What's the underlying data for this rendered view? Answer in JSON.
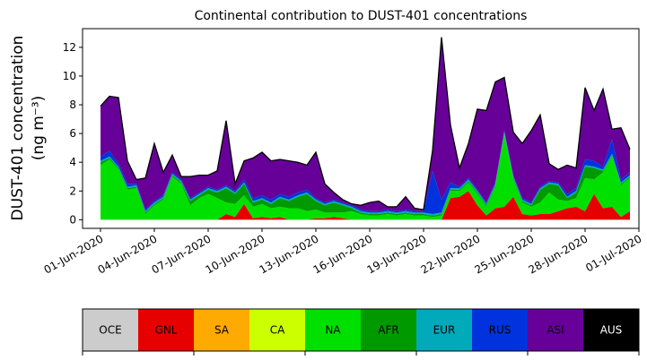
{
  "chart_data": {
    "type": "area",
    "stacked": true,
    "title": "Continental contribution to DUST-401 concentrations",
    "xlabel": "",
    "ylabel_line1": "DUST-401 concentration",
    "ylabel_line2": "(ng m⁻³)",
    "xlim": [
      "2020-05-31",
      "2020-07-01"
    ],
    "ylim": [
      -0.6,
      13.3
    ],
    "yticks": [
      0,
      2,
      4,
      6,
      8,
      10,
      12
    ],
    "xtick_labels": [
      "01-Jun-2020",
      "04-Jun-2020",
      "07-Jun-2020",
      "10-Jun-2020",
      "13-Jun-2020",
      "16-Jun-2020",
      "19-Jun-2020",
      "22-Jun-2020",
      "25-Jun-2020",
      "28-Jun-2020",
      "01-Jul-2020"
    ],
    "grid": false,
    "legend_position": "bottom",
    "x": [
      "2020-06-01",
      "2020-06-01",
      "2020-06-02",
      "2020-06-02",
      "2020-06-03",
      "2020-06-03",
      "2020-06-04",
      "2020-06-04",
      "2020-06-05",
      "2020-06-05",
      "2020-06-06",
      "2020-06-06",
      "2020-06-07",
      "2020-06-07",
      "2020-06-08",
      "2020-06-08",
      "2020-06-09",
      "2020-06-09",
      "2020-06-10",
      "2020-06-10",
      "2020-06-11",
      "2020-06-11",
      "2020-06-12",
      "2020-06-12",
      "2020-06-13",
      "2020-06-13",
      "2020-06-14",
      "2020-06-14",
      "2020-06-15",
      "2020-06-15",
      "2020-06-16",
      "2020-06-16",
      "2020-06-17",
      "2020-06-17",
      "2020-06-18",
      "2020-06-18",
      "2020-06-19",
      "2020-06-19",
      "2020-06-20",
      "2020-06-20",
      "2020-06-21",
      "2020-06-21",
      "2020-06-22",
      "2020-06-22",
      "2020-06-23",
      "2020-06-23",
      "2020-06-24",
      "2020-06-24",
      "2020-06-25",
      "2020-06-25",
      "2020-06-26",
      "2020-06-26",
      "2020-06-27",
      "2020-06-27",
      "2020-06-28",
      "2020-06-28",
      "2020-06-29",
      "2020-06-29",
      "2020-06-30",
      "2020-06-30"
    ],
    "series": [
      {
        "name": "OCE",
        "color": "#cccccc",
        "values": [
          0,
          0,
          0,
          0,
          0,
          0,
          0,
          0,
          0,
          0,
          0,
          0,
          0,
          0,
          0,
          0,
          0,
          0,
          0,
          0,
          0,
          0,
          0,
          0,
          0,
          0,
          0,
          0,
          0,
          0,
          0,
          0,
          0,
          0,
          0,
          0,
          0,
          0,
          0,
          0,
          0,
          0,
          0,
          0,
          0,
          0,
          0,
          0,
          0,
          0,
          0,
          0,
          0,
          0,
          0,
          0,
          0,
          0,
          0,
          0
        ]
      },
      {
        "name": "GNL",
        "color": "#e60000",
        "values": [
          0,
          0,
          0,
          0,
          0,
          0,
          0,
          0,
          0,
          0,
          0,
          0,
          0,
          0,
          0.4,
          0.2,
          1.1,
          0.1,
          0.2,
          0.1,
          0.2,
          0,
          0,
          0,
          0.1,
          0.1,
          0.2,
          0.1,
          0,
          0,
          0,
          0,
          0,
          0,
          0,
          0,
          0,
          0,
          0,
          1.5,
          1.6,
          2.0,
          1.0,
          0.3,
          0.8,
          0.9,
          1.6,
          0.4,
          0.3,
          0.4,
          0.4,
          0.6,
          0.8,
          0.9,
          0.6,
          1.8,
          0.8,
          0.9,
          0.2,
          0.6
        ]
      },
      {
        "name": "SA",
        "color": "#ffaa00",
        "values": [
          0,
          0,
          0,
          0,
          0,
          0,
          0,
          0,
          0,
          0,
          0,
          0,
          0,
          0,
          0,
          0,
          0,
          0,
          0,
          0,
          0,
          0,
          0,
          0,
          0,
          0,
          0,
          0,
          0,
          0,
          0,
          0,
          0,
          0,
          0,
          0,
          0,
          0,
          0,
          0,
          0,
          0,
          0,
          0,
          0,
          0,
          0,
          0,
          0,
          0,
          0,
          0,
          0,
          0,
          0,
          0,
          0,
          0,
          0,
          0
        ]
      },
      {
        "name": "CA",
        "color": "#ccff00",
        "values": [
          0,
          0,
          0,
          0,
          0,
          0,
          0,
          0,
          0,
          0,
          0,
          0,
          0,
          0,
          0,
          0,
          0,
          0,
          0,
          0,
          0,
          0,
          0,
          0,
          0,
          0,
          0,
          0,
          0,
          0,
          0,
          0,
          0,
          0,
          0,
          0,
          0,
          0,
          0,
          0,
          0,
          0,
          0,
          0,
          0,
          0,
          0,
          0,
          0,
          0,
          0,
          0,
          0,
          0,
          0,
          0,
          0,
          0,
          0,
          0
        ]
      },
      {
        "name": "NA",
        "color": "#00e000",
        "values": [
          3.8,
          4.2,
          3.5,
          2.1,
          2.2,
          0.4,
          1.0,
          1.4,
          3.0,
          2.5,
          1.0,
          1.5,
          1.8,
          1.5,
          0.8,
          0.9,
          0.6,
          0.8,
          0.9,
          0.7,
          0.7,
          0.8,
          0.8,
          0.6,
          0.6,
          0.4,
          0.3,
          0.4,
          0.6,
          0.4,
          0.3,
          0.3,
          0.4,
          0.3,
          0.4,
          0.3,
          0.3,
          0.2,
          0.3,
          0.5,
          0.4,
          0.6,
          0.8,
          0.6,
          1.5,
          5.0,
          1.2,
          0.8,
          0.6,
          0.8,
          1.5,
          0.8,
          0.5,
          0.6,
          2.3,
          1.0,
          2.5,
          3.5,
          2.2,
          2.3
        ]
      },
      {
        "name": "AFR",
        "color": "#009900",
        "values": [
          0.2,
          0.1,
          0.1,
          0.1,
          0.1,
          0.1,
          0.1,
          0.1,
          0.1,
          0.1,
          0.3,
          0.2,
          0.3,
          0.4,
          1.0,
          0.7,
          0.8,
          0.3,
          0.3,
          0.3,
          0.6,
          0.5,
          0.8,
          1.2,
          0.6,
          0.5,
          0.7,
          0.5,
          0.2,
          0.1,
          0.1,
          0.1,
          0.1,
          0.1,
          0.1,
          0.1,
          0.1,
          0.1,
          0.1,
          0.1,
          0.1,
          0.1,
          0.1,
          0.1,
          0.1,
          0.1,
          0.1,
          0.1,
          0.1,
          0.9,
          0.6,
          1.0,
          0.2,
          0.4,
          0.8,
          0.8,
          0.1,
          0.1,
          0.1,
          0.1
        ]
      },
      {
        "name": "EUR",
        "color": "#00aabb",
        "values": [
          0.1,
          0.1,
          0.1,
          0.1,
          0.1,
          0.1,
          0.1,
          0.1,
          0.1,
          0.1,
          0.1,
          0.1,
          0.1,
          0.1,
          0.1,
          0.1,
          0.1,
          0.1,
          0.1,
          0.1,
          0.1,
          0.1,
          0.1,
          0.1,
          0.1,
          0.1,
          0.1,
          0.1,
          0.1,
          0.1,
          0.1,
          0.1,
          0.1,
          0.1,
          0.1,
          0.1,
          0.1,
          0.1,
          0.1,
          0.1,
          0.1,
          0.1,
          0.1,
          0.1,
          0.1,
          0.1,
          0.1,
          0.1,
          0.1,
          0.1,
          0.1,
          0.1,
          0.1,
          0.1,
          0.1,
          0.1,
          0.1,
          0.1,
          0.1,
          0.1
        ]
      },
      {
        "name": "RUS",
        "color": "#0033dd",
        "values": [
          0.3,
          0.4,
          0.2,
          0.2,
          0.1,
          0.1,
          0.1,
          0.1,
          0.1,
          0.1,
          0.1,
          0.1,
          0.1,
          0.1,
          0.1,
          0.1,
          0.2,
          0.2,
          0.2,
          0.2,
          0.2,
          0.2,
          0.2,
          0.2,
          0.1,
          0.1,
          0.1,
          0.1,
          0.1,
          0.1,
          0.1,
          0.1,
          0.1,
          0.1,
          0.1,
          0.1,
          0.1,
          3.0,
          0.9,
          0.4,
          0.1,
          0.1,
          0.1,
          0.1,
          0.1,
          0.1,
          0.1,
          0.1,
          0.1,
          0.1,
          0.1,
          0.1,
          0.2,
          0.2,
          0.4,
          0.4,
          0.2,
          1.0,
          0.2,
          0.2
        ]
      },
      {
        "name": "ASI",
        "color": "#660099",
        "values": [
          3.5,
          3.8,
          4.6,
          1.6,
          0.3,
          2.2,
          4.0,
          1.6,
          1.2,
          0.2,
          1.5,
          1.2,
          0.8,
          1.3,
          4.5,
          0.5,
          1.3,
          2.8,
          3.0,
          2.7,
          2.4,
          2.5,
          2.1,
          1.7,
          3.2,
          1.3,
          0.5,
          0.2,
          0.1,
          0.3,
          0.6,
          0.7,
          0.2,
          0.3,
          0.9,
          0.2,
          0.1,
          1.4,
          11.3,
          4.0,
          1.3,
          2.4,
          5.6,
          6.4,
          7.0,
          3.7,
          3.0,
          3.8,
          5.0,
          5.0,
          1.2,
          0.9,
          2.0,
          1.4,
          5.0,
          3.5,
          5.4,
          0.7,
          3.6,
          1.6
        ]
      },
      {
        "name": "AUS",
        "color": "#000000",
        "values": [
          0,
          0,
          0,
          0,
          0,
          0,
          0,
          0,
          0,
          0,
          0,
          0,
          0,
          0,
          0,
          0,
          0,
          0,
          0,
          0,
          0,
          0,
          0,
          0,
          0,
          0,
          0,
          0,
          0,
          0,
          0,
          0,
          0,
          0,
          0,
          0,
          0,
          0,
          0,
          0,
          0,
          0,
          0,
          0,
          0,
          0,
          0,
          0,
          0,
          0,
          0,
          0,
          0,
          0,
          0,
          0,
          0,
          0,
          0,
          0
        ]
      }
    ]
  }
}
